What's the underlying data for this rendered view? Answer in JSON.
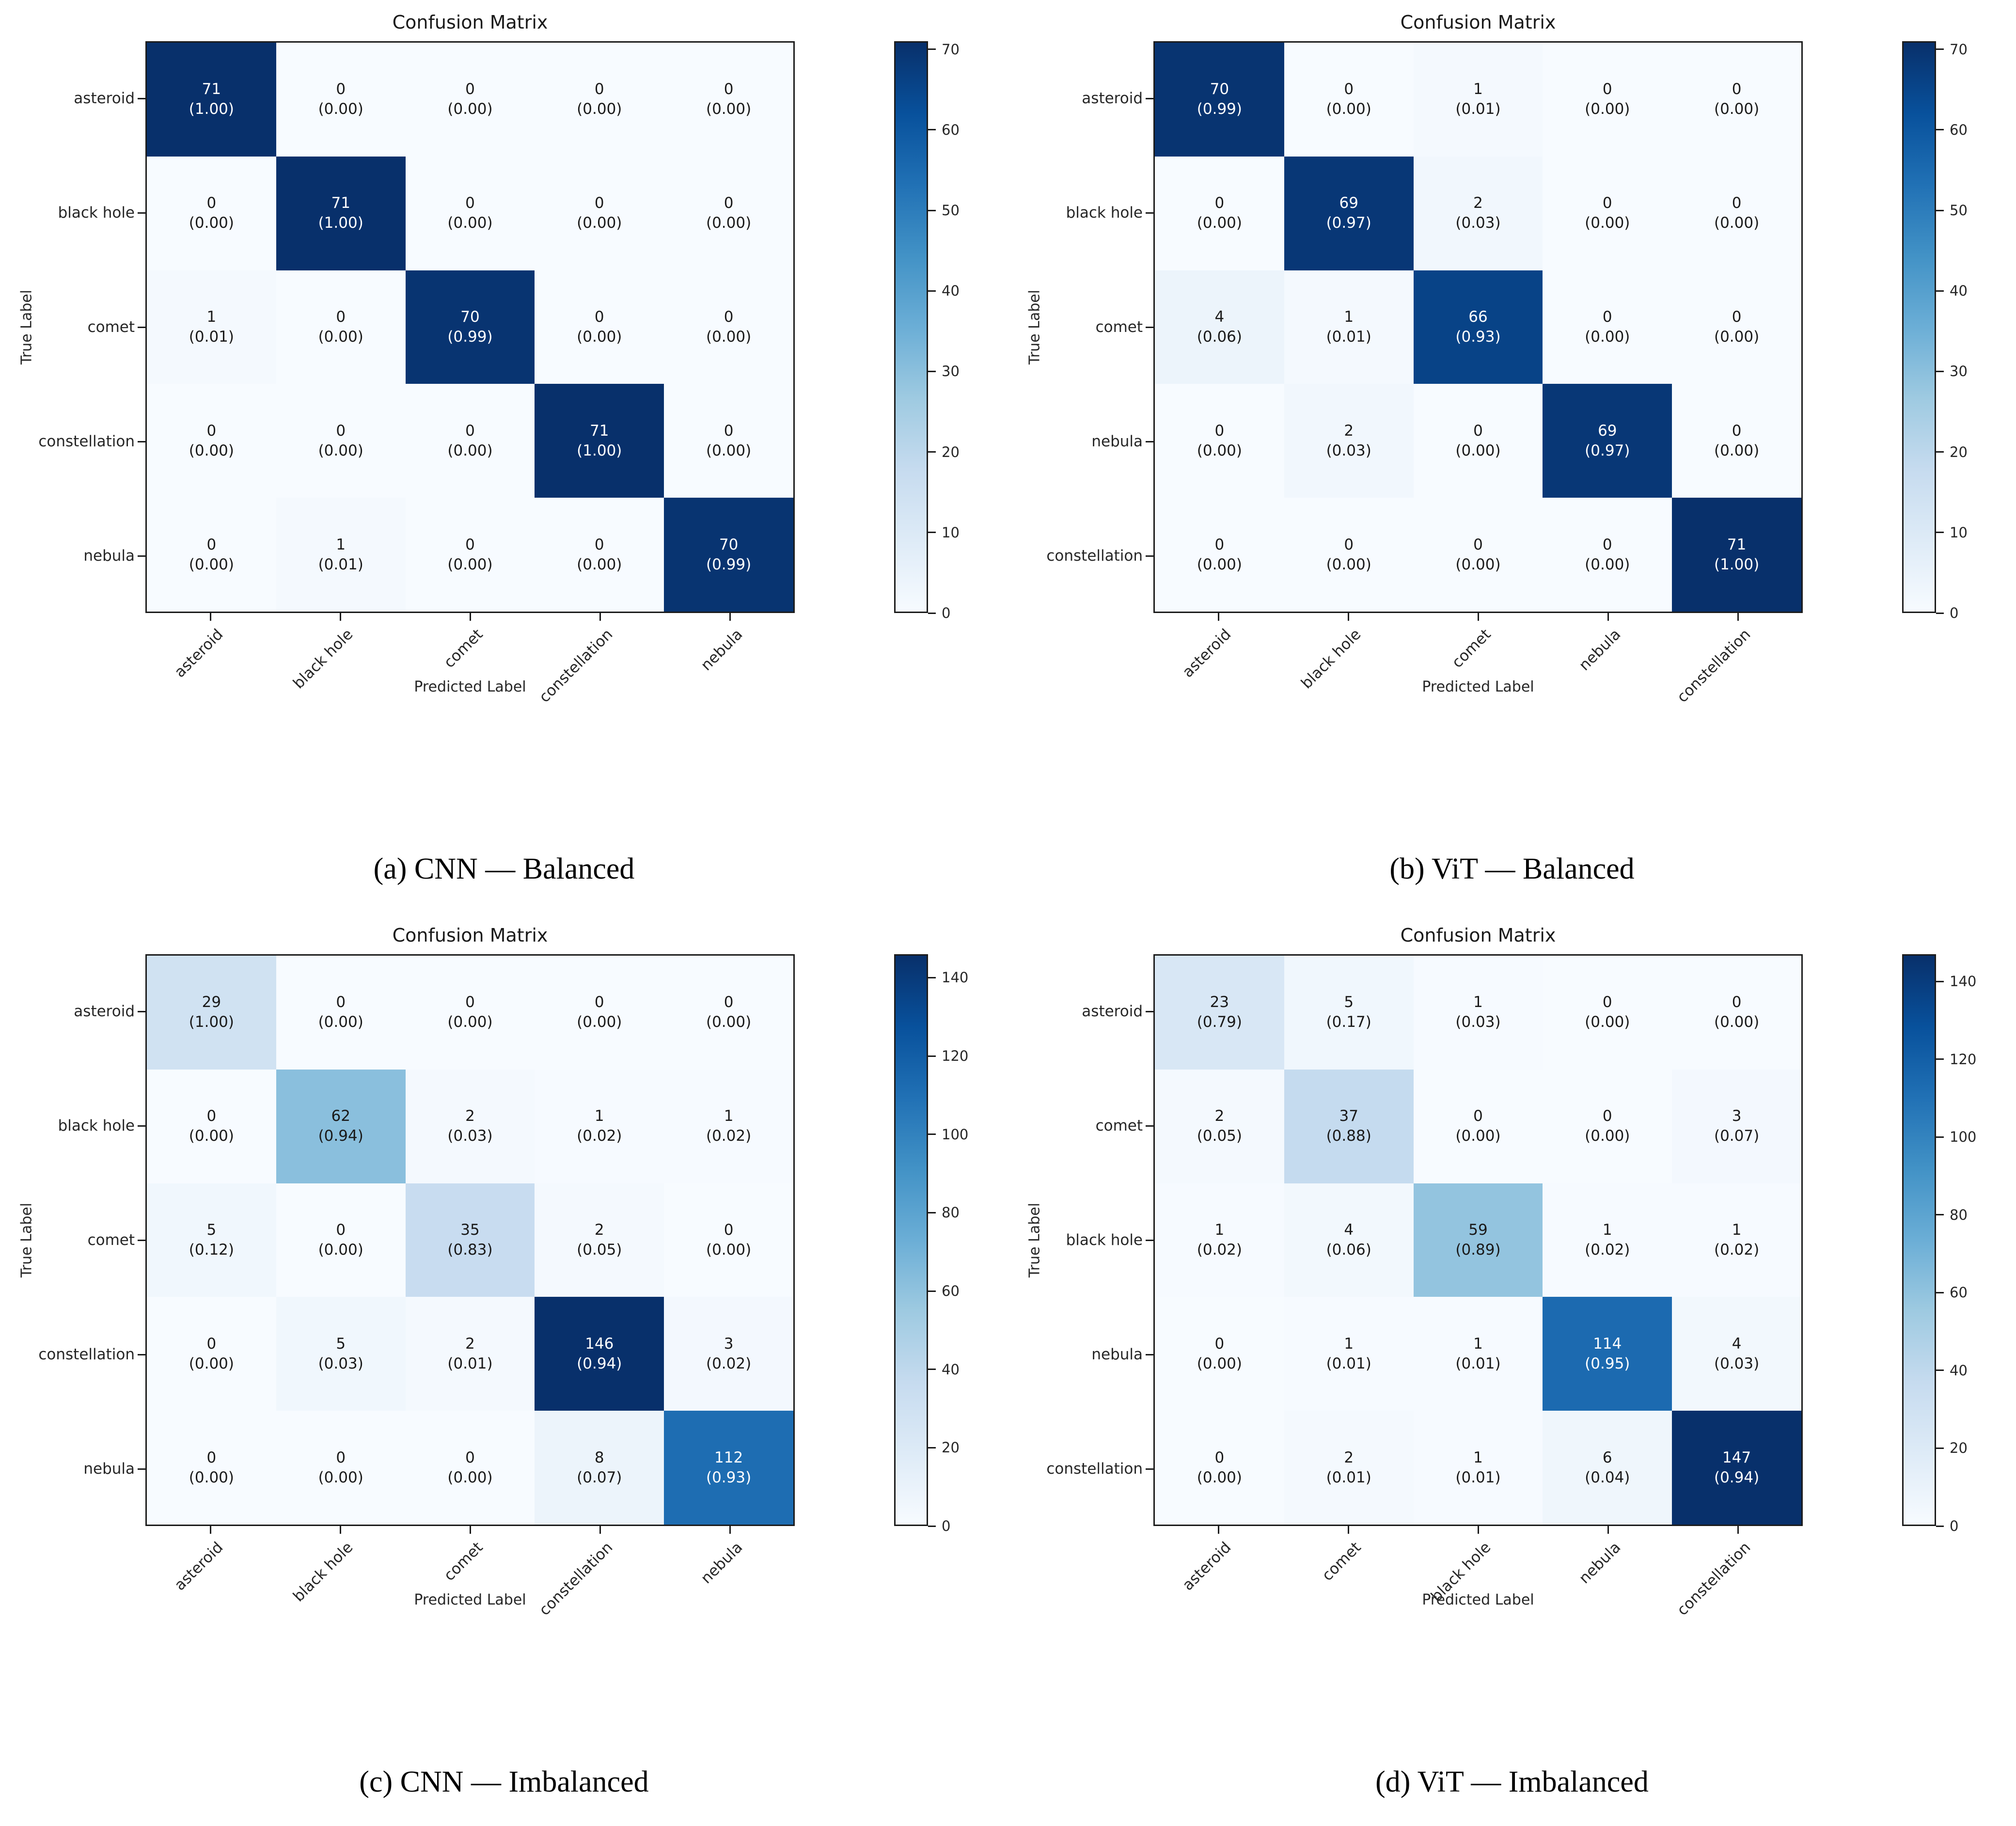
{
  "figure": {
    "background": "#ffffff",
    "colormap_name": "Blues",
    "colormap_stops": [
      "#f7fbff",
      "#deebf7",
      "#c6dbef",
      "#9ecae1",
      "#6baed6",
      "#4292c6",
      "#2171b5",
      "#08519c",
      "#08306b"
    ],
    "cell_text_on_dark": "#ffffff",
    "cell_text_on_light": "#1a1a1a",
    "spine_color": "#1c1c1c"
  },
  "chart_data": [
    {
      "type": "heatmap",
      "panel": "a",
      "title": "Confusion Matrix",
      "caption": "(a) CNN — Balanced",
      "xlabel": "Predicted Label",
      "ylabel": "True Label",
      "x_tick_labels": [
        "asteroid",
        "black hole",
        "comet",
        "constellation",
        "nebula"
      ],
      "y_tick_labels": [
        "asteroid",
        "black hole",
        "comet",
        "constellation",
        "nebula"
      ],
      "vmin": 0,
      "vmax": 71,
      "grid": false,
      "colorbar_position": "right",
      "colorbar_ticks": [
        0,
        10,
        20,
        30,
        40,
        50,
        60,
        70
      ],
      "counts": [
        [
          71,
          0,
          0,
          0,
          0
        ],
        [
          0,
          71,
          0,
          0,
          0
        ],
        [
          1,
          0,
          70,
          0,
          0
        ],
        [
          0,
          0,
          0,
          71,
          0
        ],
        [
          0,
          1,
          0,
          0,
          70
        ]
      ],
      "props": [
        [
          "1.00",
          "0.00",
          "0.00",
          "0.00",
          "0.00"
        ],
        [
          "0.00",
          "1.00",
          "0.00",
          "0.00",
          "0.00"
        ],
        [
          "0.01",
          "0.00",
          "0.99",
          "0.00",
          "0.00"
        ],
        [
          "0.00",
          "0.00",
          "0.00",
          "1.00",
          "0.00"
        ],
        [
          "0.00",
          "0.01",
          "0.00",
          "0.00",
          "0.99"
        ]
      ]
    },
    {
      "type": "heatmap",
      "panel": "b",
      "title": "Confusion Matrix",
      "caption": "(b) ViT — Balanced",
      "xlabel": "Predicted Label",
      "ylabel": "True Label",
      "x_tick_labels": [
        "asteroid",
        "black hole",
        "comet",
        "nebula",
        "constellation"
      ],
      "y_tick_labels": [
        "asteroid",
        "black hole",
        "comet",
        "nebula",
        "constellation"
      ],
      "vmin": 0,
      "vmax": 71,
      "grid": false,
      "colorbar_position": "right",
      "colorbar_ticks": [
        0,
        10,
        20,
        30,
        40,
        50,
        60,
        70
      ],
      "counts": [
        [
          70,
          0,
          1,
          0,
          0
        ],
        [
          0,
          69,
          2,
          0,
          0
        ],
        [
          4,
          1,
          66,
          0,
          0
        ],
        [
          0,
          2,
          0,
          69,
          0
        ],
        [
          0,
          0,
          0,
          0,
          71
        ]
      ],
      "props": [
        [
          "0.99",
          "0.00",
          "0.01",
          "0.00",
          "0.00"
        ],
        [
          "0.00",
          "0.97",
          "0.03",
          "0.00",
          "0.00"
        ],
        [
          "0.06",
          "0.01",
          "0.93",
          "0.00",
          "0.00"
        ],
        [
          "0.00",
          "0.03",
          "0.00",
          "0.97",
          "0.00"
        ],
        [
          "0.00",
          "0.00",
          "0.00",
          "0.00",
          "1.00"
        ]
      ]
    },
    {
      "type": "heatmap",
      "panel": "c",
      "title": "Confusion Matrix",
      "caption": "(c) CNN — Imbalanced",
      "xlabel": "Predicted Label",
      "ylabel": "True Label",
      "x_tick_labels": [
        "asteroid",
        "black hole",
        "comet",
        "constellation",
        "nebula"
      ],
      "y_tick_labels": [
        "asteroid",
        "black hole",
        "comet",
        "constellation",
        "nebula"
      ],
      "vmin": 0,
      "vmax": 146,
      "grid": false,
      "colorbar_position": "right",
      "colorbar_ticks": [
        0,
        20,
        40,
        60,
        80,
        100,
        120,
        140
      ],
      "counts": [
        [
          29,
          0,
          0,
          0,
          0
        ],
        [
          0,
          62,
          2,
          1,
          1
        ],
        [
          5,
          0,
          35,
          2,
          0
        ],
        [
          0,
          5,
          2,
          146,
          3
        ],
        [
          0,
          0,
          0,
          8,
          112
        ]
      ],
      "props": [
        [
          "1.00",
          "0.00",
          "0.00",
          "0.00",
          "0.00"
        ],
        [
          "0.00",
          "0.94",
          "0.03",
          "0.02",
          "0.02"
        ],
        [
          "0.12",
          "0.00",
          "0.83",
          "0.05",
          "0.00"
        ],
        [
          "0.00",
          "0.03",
          "0.01",
          "0.94",
          "0.02"
        ],
        [
          "0.00",
          "0.00",
          "0.00",
          "0.07",
          "0.93"
        ]
      ]
    },
    {
      "type": "heatmap",
      "panel": "d",
      "title": "Confusion Matrix",
      "caption": "(d) ViT — Imbalanced",
      "xlabel": "Predicted Label",
      "ylabel": "True Label",
      "x_tick_labels": [
        "asteroid",
        "comet",
        "black hole",
        "nebula",
        "constellation"
      ],
      "y_tick_labels": [
        "asteroid",
        "comet",
        "black hole",
        "nebula",
        "constellation"
      ],
      "vmin": 0,
      "vmax": 147,
      "grid": false,
      "colorbar_position": "right",
      "colorbar_ticks": [
        0,
        20,
        40,
        60,
        80,
        100,
        120,
        140
      ],
      "counts": [
        [
          23,
          5,
          1,
          0,
          0
        ],
        [
          2,
          37,
          0,
          0,
          3
        ],
        [
          1,
          4,
          59,
          1,
          1
        ],
        [
          0,
          1,
          1,
          114,
          4
        ],
        [
          0,
          2,
          1,
          6,
          147
        ]
      ],
      "props": [
        [
          "0.79",
          "0.17",
          "0.03",
          "0.00",
          "0.00"
        ],
        [
          "0.05",
          "0.88",
          "0.00",
          "0.00",
          "0.07"
        ],
        [
          "0.02",
          "0.06",
          "0.89",
          "0.02",
          "0.02"
        ],
        [
          "0.00",
          "0.01",
          "0.01",
          "0.95",
          "0.03"
        ],
        [
          "0.00",
          "0.01",
          "0.01",
          "0.04",
          "0.94"
        ]
      ]
    }
  ]
}
